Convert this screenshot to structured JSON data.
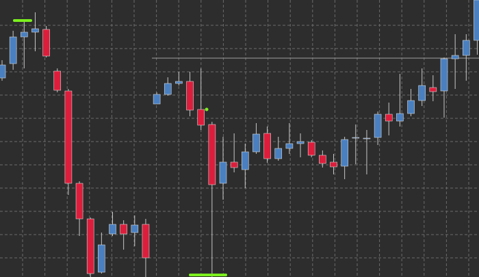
{
  "chart_data": {
    "type": "candlestick",
    "up_color": "#4a80c0",
    "down_color": "#dc1e3c",
    "wick_color": "#c8c8c8",
    "ylim": [
      0,
      405
    ],
    "yticks": [
      28,
      62,
      96,
      130,
      164,
      198,
      232,
      266,
      300,
      334,
      368
    ],
    "grid": true,
    "level": 320,
    "open": [
      291,
      312,
      351,
      358,
      362,
      301,
      272,
      137,
      85,
      7,
      63,
      77,
      65,
      77,
      253,
      267,
      283,
      286,
      245,
      223,
      137,
      168,
      157,
      183,
      210,
      173,
      188,
      195,
      197,
      178,
      168,
      162,
      204,
      203,
      204,
      238,
      228,
      239,
      258,
      277,
      272,
      319,
      324,
      346
    ],
    "close": [
      310,
      351,
      358,
      363,
      323,
      273,
      137,
      85,
      5,
      47,
      77,
      63,
      76,
      28,
      267,
      283,
      286,
      244,
      222,
      135,
      168,
      160,
      183,
      209,
      173,
      188,
      195,
      198,
      178,
      166,
      161,
      201,
      204,
      203,
      238,
      228,
      239,
      258,
      280,
      271,
      319,
      324,
      346,
      405
    ],
    "high": [
      317,
      360,
      375,
      387,
      367,
      305,
      275,
      140,
      87,
      65,
      95,
      83,
      90,
      85,
      270,
      292,
      300,
      300,
      305,
      227,
      205,
      210,
      195,
      225,
      220,
      205,
      225,
      210,
      200,
      185,
      180,
      205,
      223,
      215,
      242,
      255,
      297,
      275,
      305,
      295,
      321,
      355,
      355,
      405
    ],
    "low": [
      287,
      303,
      305,
      330,
      321,
      270,
      120,
      60,
      0,
      5,
      60,
      40,
      45,
      0,
      253,
      265,
      280,
      235,
      215,
      0,
      113,
      153,
      130,
      180,
      167,
      170,
      180,
      175,
      175,
      160,
      150,
      143,
      165,
      150,
      193,
      207,
      220,
      235,
      250,
      257,
      233,
      275,
      287,
      325
    ]
  }
}
